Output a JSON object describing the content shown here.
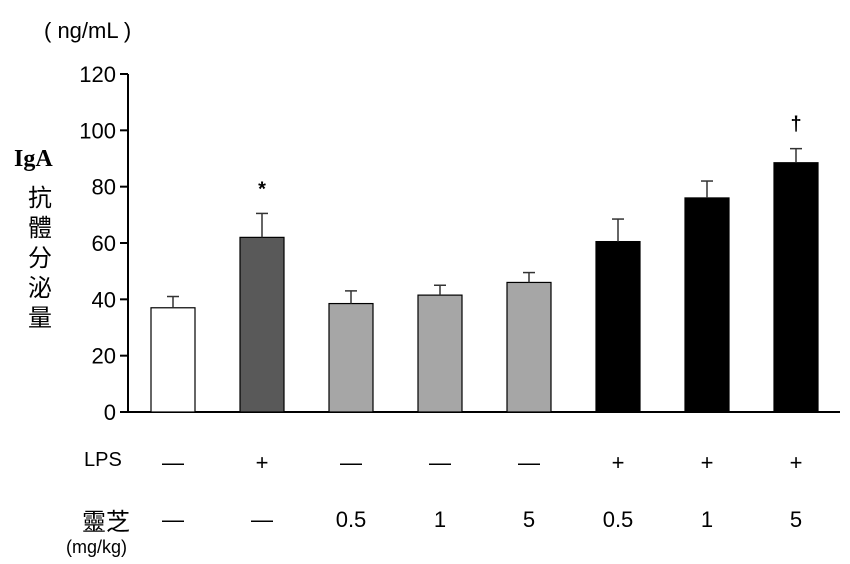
{
  "chart_data": {
    "type": "bar",
    "unit_label": "( ng/mL )",
    "ylabel_en": "IgA",
    "ylabel_zh": "抗體分泌量",
    "ylim": [
      0,
      120
    ],
    "yticks": [
      0,
      20,
      40,
      60,
      80,
      100,
      120
    ],
    "values": [
      37,
      62,
      38.5,
      41.5,
      46,
      60.5,
      76,
      88.5
    ],
    "errors": [
      4,
      8.5,
      4.5,
      3.5,
      3.5,
      8,
      6,
      5
    ],
    "colors": [
      "#ffffff",
      "#595959",
      "#a6a6a6",
      "#a6a6a6",
      "#a6a6a6",
      "#000000",
      "#000000",
      "#000000"
    ],
    "annotations": [
      "",
      "*",
      "",
      "",
      "",
      "",
      "",
      "†"
    ],
    "rows": [
      {
        "label": "LPS",
        "values": [
          "—",
          "+",
          "—",
          "—",
          "—",
          "+",
          "+",
          "+"
        ]
      },
      {
        "label": "靈芝",
        "sublabel": "(mg/kg)",
        "values": [
          "—",
          "—",
          "0.5",
          "1",
          "5",
          "0.5",
          "1",
          "5"
        ]
      }
    ]
  }
}
